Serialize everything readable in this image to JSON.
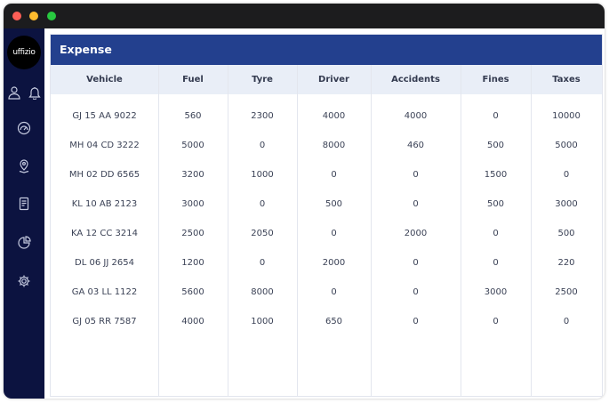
{
  "window": {
    "traffic_lights": [
      "close",
      "minimize",
      "zoom"
    ]
  },
  "sidebar": {
    "logo_text": "uffizio",
    "icons": [
      "user-icon",
      "bell-icon",
      "gauge-icon",
      "location-pin-icon",
      "document-icon",
      "pie-chart-icon",
      "gear-icon"
    ]
  },
  "panel": {
    "title": "Expense"
  },
  "table": {
    "columns": [
      "Vehicle",
      "Fuel",
      "Tyre",
      "Driver",
      "Accidents",
      "Fines",
      "Taxes"
    ],
    "rows": [
      [
        "GJ 15 AA 9022",
        "560",
        "2300",
        "4000",
        "4000",
        "0",
        "10000"
      ],
      [
        "MH 04 CD 3222",
        "5000",
        "0",
        "8000",
        "460",
        "500",
        "5000"
      ],
      [
        "MH 02 DD 6565",
        "3200",
        "1000",
        "0",
        "0",
        "1500",
        "0"
      ],
      [
        "KL 10 AB 2123",
        "3000",
        "0",
        "500",
        "0",
        "500",
        "3000"
      ],
      [
        "KA 12 CC 3214",
        "2500",
        "2050",
        "0",
        "2000",
        "0",
        "500"
      ],
      [
        "DL 06 JJ 2654",
        "1200",
        "0",
        "2000",
        "0",
        "0",
        "220"
      ],
      [
        "GA 03 LL 1122",
        "5600",
        "8000",
        "0",
        "0",
        "3000",
        "2500"
      ],
      [
        "GJ 05 RR 7587",
        "4000",
        "1000",
        "650",
        "0",
        "0",
        "0"
      ]
    ]
  },
  "colors": {
    "sidebar": "#0c1340",
    "header": "#23408e",
    "table_head": "#e9eef7",
    "titlebar": "#1c1c1e"
  }
}
